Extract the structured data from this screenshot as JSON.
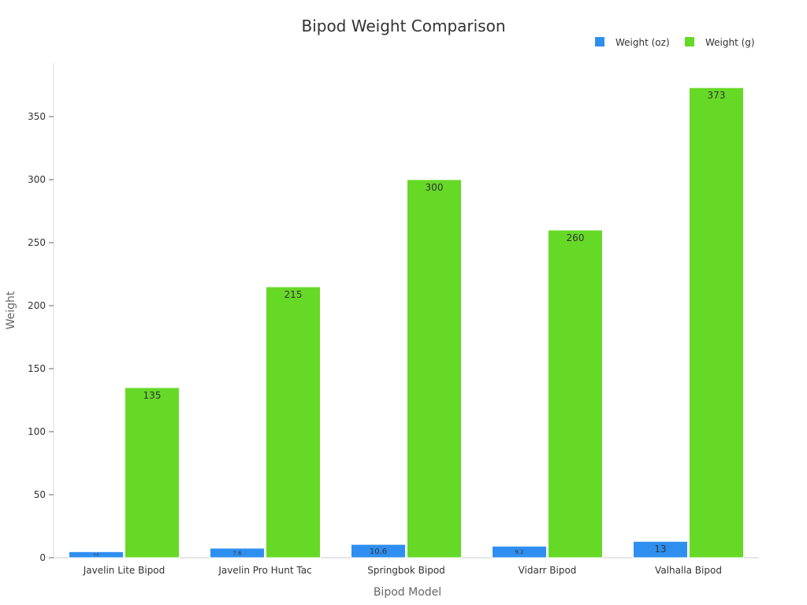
{
  "chart_data": {
    "type": "bar",
    "title": "Bipod Weight Comparison",
    "xlabel": "Bipod Model",
    "ylabel": "Weight",
    "categories": [
      "Javelin Lite Bipod",
      "Javelin Pro Hunt Tac",
      "Springbok Bipod",
      "Vidarr Bipod",
      "Valhalla Bipod"
    ],
    "series": [
      {
        "name": "Weight (oz)",
        "color": "#2f8ff0",
        "values": [
          4.8,
          7.6,
          10.6,
          9.2,
          13
        ]
      },
      {
        "name": "Weight (g)",
        "color": "#66d927",
        "values": [
          135,
          215,
          300,
          260,
          373
        ]
      }
    ],
    "ylim": [
      0,
      390
    ],
    "yticks": [
      0,
      50,
      100,
      150,
      200,
      250,
      300,
      350
    ],
    "grid": false,
    "legend_position": "top-right"
  }
}
